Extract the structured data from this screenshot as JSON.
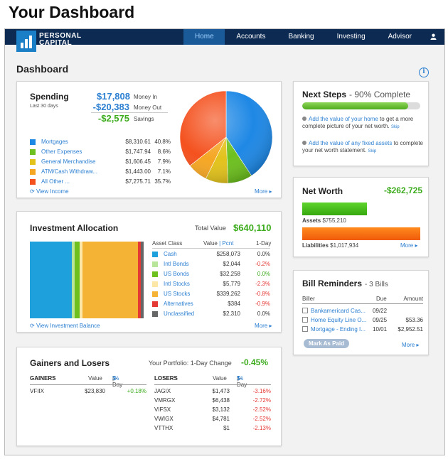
{
  "page_heading": "Your Dashboard",
  "nav": {
    "logo_line1": "PERSONAL",
    "logo_line2": "CAPITAL",
    "items": [
      "Home",
      "Accounts",
      "Banking",
      "Investing",
      "Advisor"
    ]
  },
  "dashboard_title": "Dashboard",
  "spending": {
    "title": "Spending",
    "period": "Last 30 days",
    "money_in": "$17,808",
    "money_in_label": "Money In",
    "money_out": "-$20,383",
    "money_out_label": "Money Out",
    "savings": "-$2,575",
    "savings_label": "Savings",
    "categories": [
      {
        "name": "Mortgages",
        "value": "$8,310.61",
        "pct": "40.8%",
        "color": "#1e88e5",
        "share": 40.8
      },
      {
        "name": "Other Expenses",
        "value": "$1,747.94",
        "pct": "8.6%",
        "color": "#6dc01e",
        "share": 8.6
      },
      {
        "name": "General Merchandise",
        "value": "$1,606.45",
        "pct": "7.9%",
        "color": "#e2c21b",
        "share": 7.9
      },
      {
        "name": "ATM/Cash Withdraw...",
        "value": "$1,443.00",
        "pct": "7.1%",
        "color": "#f5a623",
        "share": 7.1
      },
      {
        "name": "All Other ...",
        "value": "$7,275.71",
        "pct": "35.7%",
        "color": "#f4511e",
        "share": 35.7
      }
    ],
    "view_link": "View Income",
    "more": "More"
  },
  "investment": {
    "title": "Investment Allocation",
    "total_label": "Total Value",
    "total_value": "$640,110",
    "headers": {
      "asset_class": "Asset Class",
      "value": "Value",
      "pcnt": "Pcnt",
      "one_day": "1-Day"
    },
    "rows": [
      {
        "name": "Cash",
        "value": "$258,073",
        "change": "0.0%",
        "color": "#1ea0dc",
        "share": 40.3,
        "tone": "flat"
      },
      {
        "name": "Intl Bonds",
        "value": "$2,044",
        "change": "-0.2%",
        "color": "#b8e59a",
        "share": 0.3,
        "tone": "neg"
      },
      {
        "name": "US Bonds",
        "value": "$32,258",
        "change": "0.0%",
        "color": "#6dc01e",
        "share": 5.0,
        "tone": "pos"
      },
      {
        "name": "Intl Stocks",
        "value": "$5,779",
        "change": "-2.3%",
        "color": "#fde7a8",
        "share": 0.9,
        "tone": "neg"
      },
      {
        "name": "US Stocks",
        "value": "$339,262",
        "change": "-0.8%",
        "color": "#f5b335",
        "share": 53.0,
        "tone": "neg"
      },
      {
        "name": "Alternatives",
        "value": "$384",
        "change": "-0.9%",
        "color": "#e53935",
        "share": 0.1,
        "tone": "neg"
      },
      {
        "name": "Unclassified",
        "value": "$2,310",
        "change": "0.0%",
        "color": "#666666",
        "share": 0.4,
        "tone": "flat"
      }
    ],
    "view_link": "View Investment Balance",
    "more": "More"
  },
  "gainers_losers": {
    "title": "Gainers and Losers",
    "portfolio_label": "Your Portfolio: 1-Day Change",
    "portfolio_change": "-0.45%",
    "gainers_header": "GAINERS",
    "losers_header": "LOSERS",
    "value_header": "Value",
    "one_day_header": "1-Day",
    "dollar": "$",
    "pct": "%",
    "gainers": [
      {
        "ticker": "VFIIX",
        "value": "$23,830",
        "change": "+0.18%"
      }
    ],
    "losers": [
      {
        "ticker": "JAGIX",
        "value": "$1,473",
        "change": "-3.16%"
      },
      {
        "ticker": "VMRGX",
        "value": "$6,438",
        "change": "-2.72%"
      },
      {
        "ticker": "VIFSX",
        "value": "$3,132",
        "change": "-2.52%"
      },
      {
        "ticker": "VWIGX",
        "value": "$4,781",
        "change": "-2.52%"
      },
      {
        "ticker": "VTTHX",
        "value": "$1",
        "change": "-2.13%"
      }
    ]
  },
  "next_steps": {
    "title": "Next Steps",
    "complete": "- 90% Complete",
    "progress": 0.9,
    "items": [
      {
        "text_link": "Add the value of your home",
        "text_rest": " to get a more complete picture of your net worth.",
        "skip": "Skip"
      },
      {
        "text_link": "Add the value of any fixed assets",
        "text_rest": " to complete your net worth statement.",
        "skip": "Skip"
      }
    ]
  },
  "net_worth": {
    "title": "Net Worth",
    "value": "-$262,725",
    "assets_label": "Assets",
    "assets_value": "$755,210",
    "liabilities_label": "Liabilities",
    "liabilities_value": "$1,017,934",
    "assets_amount": 755210,
    "liabilities_amount": 1017934,
    "more": "More"
  },
  "bills": {
    "title": "Bill Reminders",
    "count": "- 3 Bills",
    "headers": {
      "biller": "Biller",
      "due": "Due",
      "amount": "Amount"
    },
    "rows": [
      {
        "biller": "Bankamericard Cas...",
        "due": "09/22",
        "amount": ""
      },
      {
        "biller": "Home Equity Line O...",
        "due": "09/25",
        "amount": "$53.36"
      },
      {
        "biller": "Mortgage - Ending I...",
        "due": "10/01",
        "amount": "$2,952.51"
      }
    ],
    "mark_paid": "Mark As Paid",
    "more": "More"
  }
}
